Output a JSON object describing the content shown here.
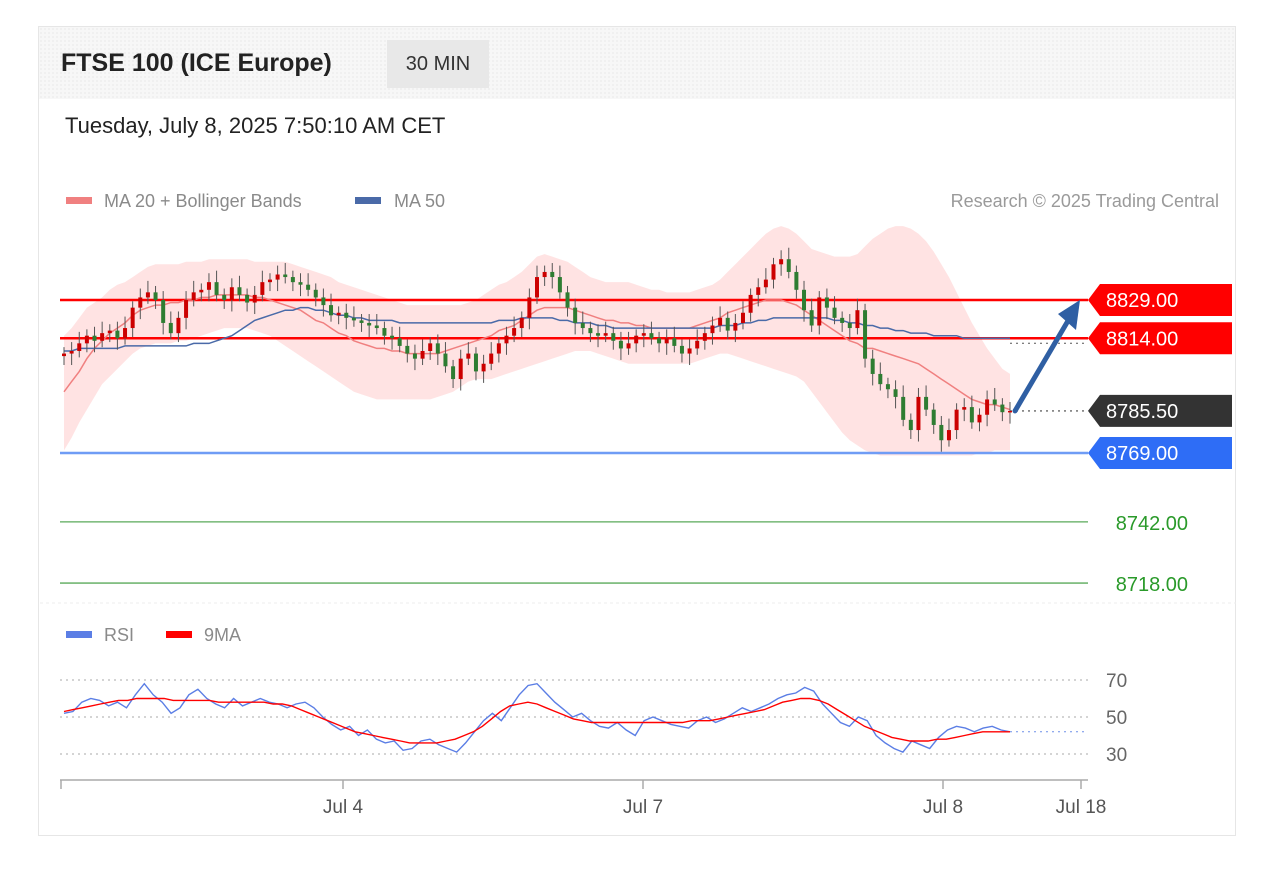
{
  "header": {
    "title": "FTSE 100 (ICE Europe)",
    "interval": "30 MIN",
    "datetime": "Tuesday, July 8, 2025 7:50:10 AM CET"
  },
  "legend": {
    "ma20": "MA 20 + Bollinger Bands",
    "ma50": "MA 50",
    "copyright": "Research © 2025 Trading Central",
    "rsi": "RSI",
    "ma9": "9MA"
  },
  "colors": {
    "resistance": "#ff0000",
    "support_pivot": "#2e6df6",
    "support": "#2a9a2a",
    "current": "#333333",
    "candle_up": "#cc0000",
    "candle_down": "#2e7d32",
    "ma20": "#f08080",
    "ma50": "#4a6aa8",
    "bands": "#ffe0e0",
    "rsi": "#5b7ee5",
    "rsi_ma": "#ff0000",
    "arrow": "#2f5fa3"
  },
  "chart_data": [
    {
      "type": "candlestick",
      "x_labels": [
        "Jul 4",
        "Jul 7",
        "Jul 8",
        "Jul 18"
      ],
      "levels": [
        {
          "value": 8829.0,
          "label": "8829.00",
          "kind": "resistance"
        },
        {
          "value": 8814.0,
          "label": "8814.00",
          "kind": "resistance"
        },
        {
          "value": 8785.5,
          "label": "8785.50",
          "kind": "current"
        },
        {
          "value": 8769.0,
          "label": "8769.00",
          "kind": "pivot"
        },
        {
          "value": 8742.0,
          "label": "8742.00",
          "kind": "support"
        },
        {
          "value": 8718.0,
          "label": "8718.00",
          "kind": "support"
        }
      ],
      "ylim": [
        8710,
        8870
      ],
      "target_arrow": {
        "from": 8785.5,
        "to": 8829.0
      },
      "closes": [
        8808,
        8809,
        8812,
        8815,
        8813,
        8816,
        8817,
        8814,
        8818,
        8826,
        8830,
        8832,
        8829,
        8820,
        8816,
        8822,
        8829,
        8832,
        8833,
        8836,
        8831,
        8829,
        8834,
        8831,
        8828,
        8831,
        8836,
        8837,
        8839,
        8838,
        8836,
        8835,
        8833,
        8830,
        8827,
        8823,
        8824,
        8822,
        8821,
        8820,
        8819,
        8818,
        8815,
        8814,
        8811,
        8808,
        8806,
        8809,
        8812,
        8808,
        8803,
        8798,
        8806,
        8808,
        8801,
        8804,
        8808,
        8812,
        8815,
        8818,
        8822,
        8830,
        8838,
        8840,
        8838,
        8832,
        8826,
        8820,
        8818,
        8816,
        8815,
        8816,
        8813,
        8810,
        8812,
        8815,
        8816,
        8814,
        8812,
        8814,
        8811,
        8808,
        8810,
        8813,
        8816,
        8819,
        8822,
        8817,
        8820,
        8824,
        8831,
        8834,
        8837,
        8843,
        8845,
        8840,
        8833,
        8825,
        8819,
        8830,
        8826,
        8822,
        8820,
        8818,
        8825,
        8806,
        8800,
        8796,
        8794,
        8791,
        8782,
        8778,
        8791,
        8786,
        8780,
        8774,
        8778,
        8786,
        8787,
        8781,
        8784,
        8790,
        8788,
        8785,
        8785.5
      ],
      "bb_upper": [
        8815,
        8818,
        8822,
        8826,
        8828,
        8830,
        8833,
        8835,
        8836,
        8838,
        8840,
        8842,
        8843,
        8843,
        8843,
        8843,
        8844,
        8844,
        8844,
        8845,
        8845,
        8845,
        8845,
        8845,
        8845,
        8844,
        8844,
        8844,
        8844,
        8844,
        8843,
        8842,
        8841,
        8840,
        8839,
        8838,
        8836,
        8835,
        8834,
        8833,
        8832,
        8831,
        8830,
        8829,
        8828,
        8827,
        8827,
        8827,
        8827,
        8827,
        8827,
        8827,
        8827,
        8828,
        8829,
        8831,
        8833,
        8835,
        8836,
        8838,
        8840,
        8843,
        8846,
        8847,
        8846,
        8845,
        8844,
        8842,
        8840,
        8838,
        8837,
        8836,
        8836,
        8836,
        8836,
        8835,
        8834,
        8833,
        8833,
        8832,
        8832,
        8832,
        8832,
        8833,
        8834,
        8835,
        8837,
        8840,
        8843,
        8846,
        8849,
        8852,
        8855,
        8857,
        8858,
        8857,
        8855,
        8852,
        8849,
        8848,
        8847,
        8846,
        8846,
        8846,
        8847,
        8850,
        8853,
        8855,
        8857,
        8858,
        8858,
        8857,
        8855,
        8852,
        8848,
        8843,
        8838,
        8832,
        8826,
        8820,
        8815,
        8810,
        8806,
        8802,
        8800
      ],
      "bb_lower": [
        8770,
        8775,
        8781,
        8786,
        8791,
        8796,
        8799,
        8802,
        8805,
        8808,
        8810,
        8811,
        8812,
        8812,
        8812,
        8813,
        8813,
        8814,
        8815,
        8816,
        8817,
        8818,
        8818,
        8818,
        8818,
        8817,
        8816,
        8815,
        8813,
        8811,
        8809,
        8807,
        8805,
        8803,
        8801,
        8799,
        8797,
        8795,
        8793,
        8792,
        8791,
        8790,
        8790,
        8790,
        8790,
        8790,
        8790,
        8790,
        8790,
        8791,
        8792,
        8793,
        8795,
        8797,
        8798,
        8798,
        8798,
        8799,
        8800,
        8801,
        8802,
        8803,
        8804,
        8805,
        8806,
        8807,
        8808,
        8809,
        8809,
        8809,
        8808,
        8807,
        8806,
        8805,
        8804,
        8804,
        8804,
        8804,
        8804,
        8804,
        8804,
        8804,
        8804,
        8805,
        8806,
        8807,
        8808,
        8808,
        8807,
        8806,
        8805,
        8804,
        8803,
        8802,
        8801,
        8800,
        8799,
        8797,
        8793,
        8789,
        8785,
        8781,
        8777,
        8774,
        8772,
        8770,
        8769,
        8768,
        8768,
        8768,
        8768,
        8768,
        8768,
        8768,
        8768,
        8768,
        8768,
        8768,
        8768,
        8768,
        8769,
        8769,
        8770,
        8770,
        8770
      ],
      "ma20": [
        8793,
        8797,
        8801,
        8806,
        8810,
        8813,
        8816,
        8818,
        8820,
        8823,
        8825,
        8826,
        8827,
        8827,
        8828,
        8828,
        8829,
        8829,
        8830,
        8830,
        8831,
        8831,
        8831,
        8831,
        8831,
        8830,
        8830,
        8829,
        8828,
        8827,
        8826,
        8825,
        8823,
        8821,
        8820,
        8818,
        8816,
        8815,
        8813,
        8812,
        8811,
        8810,
        8810,
        8809,
        8809,
        8808,
        8808,
        8808,
        8808,
        8808,
        8809,
        8810,
        8811,
        8812,
        8813,
        8814,
        8815,
        8817,
        8818,
        8819,
        8821,
        8823,
        8825,
        8826,
        8826,
        8826,
        8826,
        8825,
        8824,
        8823,
        8822,
        8821,
        8821,
        8820,
        8820,
        8819,
        8819,
        8818,
        8818,
        8818,
        8818,
        8818,
        8818,
        8819,
        8820,
        8821,
        8822,
        8824,
        8825,
        8826,
        8827,
        8828,
        8829,
        8829,
        8829,
        8828,
        8827,
        8825,
        8823,
        8821,
        8819,
        8817,
        8815,
        8813,
        8812,
        8810,
        8810,
        8809,
        8808,
        8807,
        8806,
        8805,
        8804,
        8802,
        8800,
        8798,
        8796,
        8794,
        8792,
        8790,
        8789,
        8788,
        8788,
        8787,
        8786
      ],
      "ma50": [
        8809,
        8809,
        8810,
        8810,
        8810,
        8810,
        8810,
        8810,
        8811,
        8811,
        8811,
        8811,
        8811,
        8811,
        8811,
        8811,
        8811,
        8812,
        8812,
        8812,
        8813,
        8814,
        8815,
        8817,
        8819,
        8821,
        8822,
        8823,
        8824,
        8825,
        8825,
        8826,
        8826,
        8825,
        8825,
        8824,
        8823,
        8823,
        8822,
        8822,
        8821,
        8821,
        8821,
        8821,
        8820,
        8820,
        8820,
        8820,
        8820,
        8820,
        8820,
        8820,
        8820,
        8820,
        8820,
        8820,
        8820,
        8821,
        8821,
        8821,
        8822,
        8822,
        8822,
        8822,
        8822,
        8821,
        8821,
        8820,
        8820,
        8820,
        8819,
        8819,
        8818,
        8818,
        8818,
        8818,
        8818,
        8818,
        8818,
        8818,
        8818,
        8818,
        8818,
        8818,
        8818,
        8818,
        8819,
        8819,
        8819,
        8820,
        8820,
        8821,
        8821,
        8822,
        8822,
        8822,
        8822,
        8822,
        8822,
        8822,
        8822,
        8821,
        8821,
        8820,
        8820,
        8819,
        8819,
        8818,
        8818,
        8817,
        8817,
        8816,
        8816,
        8816,
        8815,
        8815,
        8815,
        8815,
        8814,
        8814,
        8814,
        8814,
        8814,
        8814,
        8814
      ]
    },
    {
      "type": "line",
      "series": [
        {
          "name": "RSI",
          "values": [
            52,
            53,
            58,
            60,
            59,
            56,
            58,
            55,
            62,
            68,
            62,
            58,
            52,
            55,
            62,
            65,
            60,
            57,
            55,
            60,
            56,
            58,
            60,
            58,
            57,
            55,
            57,
            58,
            55,
            50,
            46,
            43,
            45,
            40,
            43,
            38,
            36,
            37,
            32,
            33,
            37,
            38,
            35,
            33,
            31,
            36,
            42,
            48,
            52,
            48,
            55,
            62,
            67,
            68,
            63,
            58,
            54,
            50,
            52,
            48,
            45,
            44,
            47,
            43,
            40,
            48,
            50,
            48,
            46,
            45,
            44,
            48,
            50,
            47,
            49,
            52,
            55,
            53,
            55,
            57,
            60,
            62,
            63,
            66,
            64,
            57,
            52,
            47,
            45,
            50,
            48,
            40,
            36,
            33,
            31,
            37,
            35,
            33,
            39,
            43,
            45,
            44,
            42,
            44,
            45,
            43,
            42
          ],
          "color": "#5b7ee5"
        },
        {
          "name": "9MA",
          "values": [
            53,
            54,
            55,
            56,
            57,
            58,
            59,
            59,
            60,
            60,
            60,
            60,
            59,
            59,
            59,
            59,
            59,
            58,
            58,
            58,
            58,
            58,
            58,
            57,
            57,
            56,
            54,
            52,
            50,
            48,
            46,
            44,
            42,
            41,
            40,
            39,
            38,
            37,
            36,
            36,
            36,
            36,
            37,
            38,
            40,
            42,
            45,
            49,
            53,
            56,
            57,
            58,
            57,
            55,
            53,
            51,
            49,
            48,
            47,
            47,
            47,
            47,
            47,
            47,
            47,
            47,
            47,
            47,
            47,
            48,
            48,
            48,
            49,
            50,
            51,
            52,
            53,
            54,
            56,
            58,
            59,
            60,
            60,
            59,
            57,
            54,
            51,
            48,
            45,
            43,
            41,
            39,
            38,
            37,
            37,
            37,
            38,
            38,
            39,
            40,
            41,
            42,
            42,
            42,
            42
          ],
          "color": "#ff0000"
        }
      ],
      "y_ticks": [
        "70",
        "50",
        "30"
      ],
      "ylim": [
        25,
        75
      ]
    }
  ]
}
